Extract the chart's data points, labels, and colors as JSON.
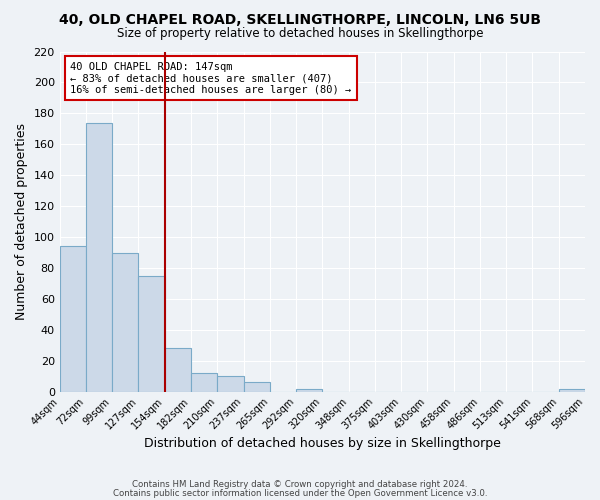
{
  "title": "40, OLD CHAPEL ROAD, SKELLINGTHORPE, LINCOLN, LN6 5UB",
  "subtitle": "Size of property relative to detached houses in Skellingthorpe",
  "xlabel": "Distribution of detached houses by size in Skellingthorpe",
  "ylabel": "Number of detached properties",
  "bar_color": "#ccd9e8",
  "bar_edge_color": "#7aaac8",
  "bins": [
    "44sqm",
    "72sqm",
    "99sqm",
    "127sqm",
    "154sqm",
    "182sqm",
    "210sqm",
    "237sqm",
    "265sqm",
    "292sqm",
    "320sqm",
    "348sqm",
    "375sqm",
    "403sqm",
    "430sqm",
    "458sqm",
    "486sqm",
    "513sqm",
    "541sqm",
    "568sqm",
    "596sqm"
  ],
  "values": [
    94,
    174,
    90,
    75,
    28,
    12,
    10,
    6,
    0,
    2,
    0,
    0,
    0,
    0,
    0,
    0,
    0,
    0,
    0,
    2
  ],
  "ylim": [
    0,
    220
  ],
  "yticks": [
    0,
    20,
    40,
    60,
    80,
    100,
    120,
    140,
    160,
    180,
    200,
    220
  ],
  "vline_color": "#aa0000",
  "annotation_title": "40 OLD CHAPEL ROAD: 147sqm",
  "annotation_line1": "← 83% of detached houses are smaller (407)",
  "annotation_line2": "16% of semi-detached houses are larger (80) →",
  "annotation_box_color": "#ffffff",
  "annotation_box_edge_color": "#cc0000",
  "footer_line1": "Contains HM Land Registry data © Crown copyright and database right 2024.",
  "footer_line2": "Contains public sector information licensed under the Open Government Licence v3.0.",
  "background_color": "#eef2f6",
  "grid_color": "#ffffff"
}
